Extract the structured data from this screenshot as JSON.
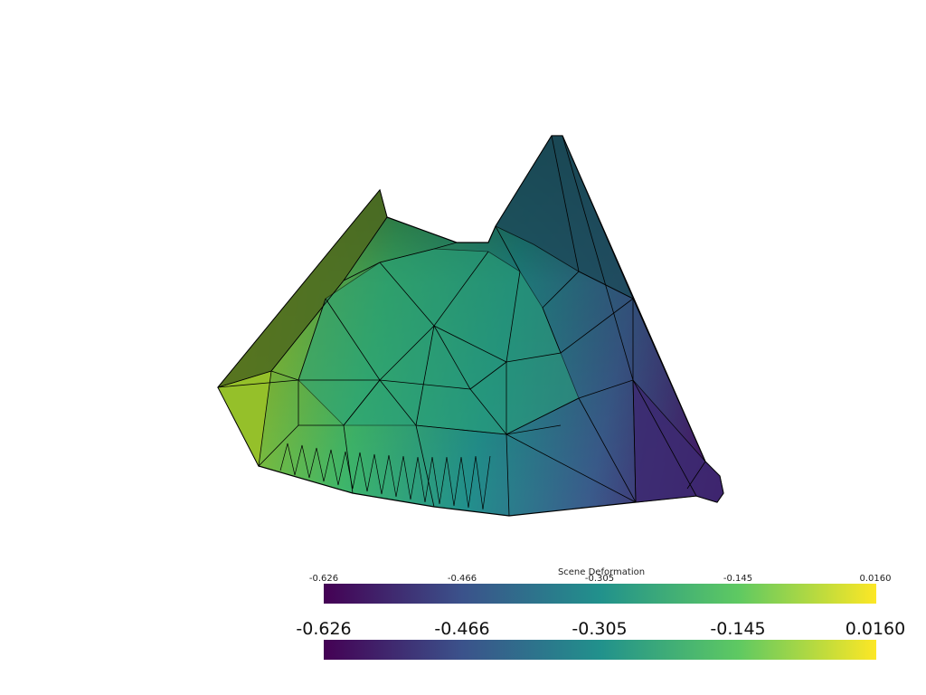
{
  "scalar_bar_small": {
    "title": "Scene Deformation",
    "ticks": [
      "-0.626",
      "-0.466",
      "-0.305",
      "-0.145",
      "0.0160"
    ]
  },
  "scalar_bar_large": {
    "ticks": [
      "-0.626",
      "-0.466",
      "-0.305",
      "-0.145",
      "0.0160"
    ]
  },
  "colormap": {
    "name": "viridis",
    "stops": [
      "#440154",
      "#3b528b",
      "#21918c",
      "#5ec962",
      "#fde725"
    ]
  },
  "mesh": {
    "edge_color": "#000000",
    "light_color": "#f2e41f",
    "dark_color": "#440154"
  }
}
